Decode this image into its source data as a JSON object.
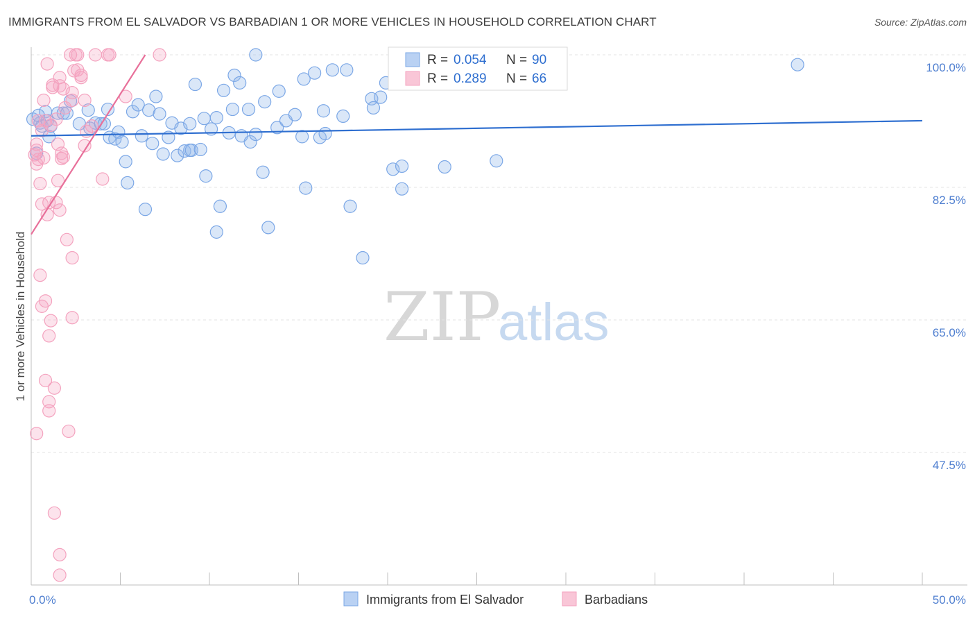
{
  "chart_data": {
    "type": "scatter",
    "title": "IMMIGRANTS FROM EL SALVADOR VS BARBADIAN 1 OR MORE VEHICLES IN HOUSEHOLD CORRELATION CHART",
    "source": "Source: ZipAtlas.com",
    "xlabel": "",
    "ylabel": "1 or more Vehicles in Household",
    "xlim": [
      0,
      50
    ],
    "ylim": [
      30,
      100
    ],
    "x_tick_labels": [
      "0.0%",
      "50.0%"
    ],
    "y_ticks": [
      {
        "value": 100.0,
        "label": "100.0%"
      },
      {
        "value": 82.5,
        "label": "82.5%"
      },
      {
        "value": 65.0,
        "label": "65.0%"
      },
      {
        "value": 47.5,
        "label": "47.5%"
      }
    ],
    "watermark": {
      "zip": "ZIP",
      "atlas": "atlas"
    },
    "legend": [
      {
        "r_label": "R =",
        "r_value": "0.054",
        "n_label": "N =",
        "n_value": "90"
      },
      {
        "r_label": "R =",
        "r_value": "0.289",
        "n_label": "N =",
        "n_value": "66"
      }
    ],
    "series": [
      {
        "name": "Immigrants from El Salvador",
        "color": "#7ba7e6",
        "line_color": "#2f6fd0",
        "trend": {
          "x": [
            0,
            50
          ],
          "y": [
            89.3,
            91.3
          ]
        },
        "points": [
          [
            0.1,
            91.5
          ],
          [
            0.5,
            91
          ],
          [
            0.6,
            90.6
          ],
          [
            0.8,
            92.5
          ],
          [
            0.9,
            91.3
          ],
          [
            1.0,
            89.2
          ],
          [
            1.1,
            90.6
          ],
          [
            1.5,
            92.3
          ],
          [
            1.8,
            92.3
          ],
          [
            2.0,
            92.3
          ],
          [
            2.2,
            93.9
          ],
          [
            2.7,
            90.9
          ],
          [
            3.2,
            92.7
          ],
          [
            3.3,
            90.3
          ],
          [
            3.6,
            91.0
          ],
          [
            3.9,
            90.9
          ],
          [
            4.1,
            90.9
          ],
          [
            4.3,
            92.8
          ],
          [
            4.4,
            89.1
          ],
          [
            4.7,
            88.9
          ],
          [
            4.9,
            89.8
          ],
          [
            5.1,
            88.5
          ],
          [
            5.3,
            85.9
          ],
          [
            5.4,
            83.1
          ],
          [
            5.7,
            92.5
          ],
          [
            6.0,
            93.4
          ],
          [
            6.2,
            89.3
          ],
          [
            6.4,
            79.6
          ],
          [
            6.6,
            92.7
          ],
          [
            6.8,
            88.3
          ],
          [
            7.0,
            94.5
          ],
          [
            7.2,
            92.2
          ],
          [
            7.4,
            86.9
          ],
          [
            7.7,
            89.1
          ],
          [
            7.9,
            91.0
          ],
          [
            8.2,
            86.7
          ],
          [
            8.4,
            90.3
          ],
          [
            8.6,
            87.3
          ],
          [
            8.9,
            87.4
          ],
          [
            8.9,
            90.9
          ],
          [
            9.0,
            87.4
          ],
          [
            9.2,
            96.1
          ],
          [
            9.5,
            87.5
          ],
          [
            9.7,
            91.6
          ],
          [
            9.8,
            84.0
          ],
          [
            10.1,
            90.2
          ],
          [
            10.4,
            91.7
          ],
          [
            10.6,
            80.0
          ],
          [
            10.4,
            76.6
          ],
          [
            10.8,
            95.3
          ],
          [
            11.1,
            89.7
          ],
          [
            11.3,
            92.8
          ],
          [
            11.4,
            97.3
          ],
          [
            11.7,
            96.3
          ],
          [
            11.8,
            89.3
          ],
          [
            12.2,
            92.8
          ],
          [
            12.3,
            88.5
          ],
          [
            12.6,
            100.0
          ],
          [
            12.6,
            89.5
          ],
          [
            13.0,
            84.5
          ],
          [
            13.1,
            93.8
          ],
          [
            13.3,
            77.2
          ],
          [
            13.8,
            90.4
          ],
          [
            13.9,
            95.2
          ],
          [
            14.3,
            91.3
          ],
          [
            14.8,
            92.1
          ],
          [
            15.2,
            89.2
          ],
          [
            15.3,
            96.8
          ],
          [
            15.4,
            82.4
          ],
          [
            15.9,
            97.6
          ],
          [
            16.2,
            89.1
          ],
          [
            16.5,
            89.6
          ],
          [
            16.4,
            92.6
          ],
          [
            16.9,
            98.0
          ],
          [
            17.5,
            91.9
          ],
          [
            17.7,
            98.0
          ],
          [
            17.9,
            80.0
          ],
          [
            18.6,
            73.2
          ],
          [
            19.1,
            94.2
          ],
          [
            19.2,
            93.0
          ],
          [
            19.6,
            94.4
          ],
          [
            19.9,
            96.3
          ],
          [
            20.3,
            84.9
          ],
          [
            20.8,
            85.3
          ],
          [
            20.8,
            82.3
          ],
          [
            23.2,
            85.2
          ],
          [
            26.1,
            86.0
          ],
          [
            43.0,
            98.7
          ],
          [
            0.3,
            87.0
          ],
          [
            0.4,
            92.0
          ]
        ]
      },
      {
        "name": "Barbadians",
        "color": "#f4a3bf",
        "line_color": "#e8709a",
        "trend": {
          "x": [
            0.0,
            6.4
          ],
          "y": [
            76.3,
            100.0
          ]
        },
        "points": [
          [
            0.2,
            86.8
          ],
          [
            0.3,
            87.4
          ],
          [
            0.3,
            85.6
          ],
          [
            0.3,
            88.2
          ],
          [
            0.4,
            86.2
          ],
          [
            0.4,
            91.3
          ],
          [
            0.3,
            50.0
          ],
          [
            0.5,
            83.0
          ],
          [
            0.5,
            70.9
          ],
          [
            0.6,
            66.8
          ],
          [
            0.6,
            80.3
          ],
          [
            0.6,
            90.0
          ],
          [
            0.7,
            86.4
          ],
          [
            0.7,
            94.0
          ],
          [
            0.8,
            67.5
          ],
          [
            0.8,
            57.0
          ],
          [
            0.8,
            91.3
          ],
          [
            0.9,
            98.8
          ],
          [
            0.9,
            78.9
          ],
          [
            1.0,
            54.2
          ],
          [
            1.0,
            53.0
          ],
          [
            1.0,
            80.5
          ],
          [
            1.0,
            62.9
          ],
          [
            1.1,
            64.9
          ],
          [
            1.1,
            90.7
          ],
          [
            1.2,
            95.7
          ],
          [
            1.2,
            96.0
          ],
          [
            1.3,
            56.0
          ],
          [
            1.3,
            39.5
          ],
          [
            1.4,
            91.5
          ],
          [
            1.4,
            80.5
          ],
          [
            1.5,
            88.2
          ],
          [
            1.5,
            83.4
          ],
          [
            1.6,
            34.0
          ],
          [
            1.6,
            31.3
          ],
          [
            1.6,
            97.0
          ],
          [
            1.6,
            79.5
          ],
          [
            1.6,
            95.9
          ],
          [
            1.7,
            87.0
          ],
          [
            1.7,
            86.3
          ],
          [
            1.8,
            86.5
          ],
          [
            1.8,
            95.5
          ],
          [
            1.9,
            93.0
          ],
          [
            2.0,
            75.6
          ],
          [
            2.1,
            50.3
          ],
          [
            2.2,
            100.0
          ],
          [
            2.3,
            94.0
          ],
          [
            2.3,
            73.2
          ],
          [
            2.3,
            65.3
          ],
          [
            2.3,
            95.0
          ],
          [
            2.4,
            97.9
          ],
          [
            2.5,
            100.0
          ],
          [
            2.6,
            100.0
          ],
          [
            2.6,
            98.0
          ],
          [
            2.8,
            97.3
          ],
          [
            2.8,
            97.0
          ],
          [
            3.0,
            94.0
          ],
          [
            3.0,
            88.0
          ],
          [
            3.1,
            89.9
          ],
          [
            3.4,
            90.6
          ],
          [
            3.6,
            100.0
          ],
          [
            4.0,
            83.6
          ],
          [
            4.3,
            100.0
          ],
          [
            4.4,
            100.0
          ],
          [
            5.3,
            94.5
          ],
          [
            7.2,
            100.0
          ]
        ]
      }
    ]
  }
}
